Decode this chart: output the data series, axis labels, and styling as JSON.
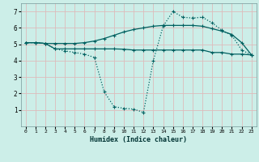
{
  "xlabel": "Humidex (Indice chaleur)",
  "background_color": "#cceee8",
  "grid_color": "#ddbbbb",
  "line_color": "#006060",
  "xlim": [
    -0.5,
    23.5
  ],
  "ylim": [
    0,
    7.5
  ],
  "xticks": [
    0,
    1,
    2,
    3,
    4,
    5,
    6,
    7,
    8,
    9,
    10,
    11,
    12,
    13,
    14,
    15,
    16,
    17,
    18,
    19,
    20,
    21,
    22,
    23
  ],
  "yticks": [
    1,
    2,
    3,
    4,
    5,
    6,
    7
  ],
  "line1_x": [
    0,
    1,
    2,
    3,
    4,
    5,
    6,
    7,
    8,
    9,
    10,
    11,
    12,
    13,
    14,
    15,
    16,
    17,
    18,
    19,
    20,
    21,
    22,
    23
  ],
  "line1_y": [
    5.1,
    5.1,
    5.05,
    5.05,
    5.05,
    5.05,
    5.1,
    5.2,
    5.35,
    5.55,
    5.75,
    5.9,
    6.0,
    6.1,
    6.15,
    6.15,
    6.15,
    6.15,
    6.1,
    5.95,
    5.8,
    5.6,
    5.1,
    4.35
  ],
  "line2_x": [
    0,
    1,
    2,
    3,
    4,
    5,
    6,
    7,
    8,
    9,
    10,
    11,
    12,
    13,
    14,
    15,
    16,
    17,
    18,
    19,
    20,
    21,
    22,
    23
  ],
  "line2_y": [
    5.1,
    5.1,
    5.05,
    4.72,
    4.72,
    4.72,
    4.72,
    4.72,
    4.72,
    4.72,
    4.7,
    4.65,
    4.65,
    4.65,
    4.65,
    4.65,
    4.65,
    4.65,
    4.65,
    4.5,
    4.5,
    4.4,
    4.4,
    4.35
  ],
  "line3_x": [
    0,
    1,
    2,
    3,
    4,
    5,
    6,
    7,
    8,
    9,
    10,
    11,
    12,
    13,
    14,
    15,
    16,
    17,
    18,
    19,
    20,
    21,
    22,
    23
  ],
  "line3_y": [
    5.1,
    5.1,
    5.05,
    4.72,
    4.6,
    4.5,
    4.4,
    4.2,
    2.1,
    1.2,
    1.1,
    1.05,
    0.85,
    4.0,
    6.1,
    7.0,
    6.65,
    6.6,
    6.65,
    6.3,
    5.85,
    5.55,
    4.65,
    4.35
  ]
}
